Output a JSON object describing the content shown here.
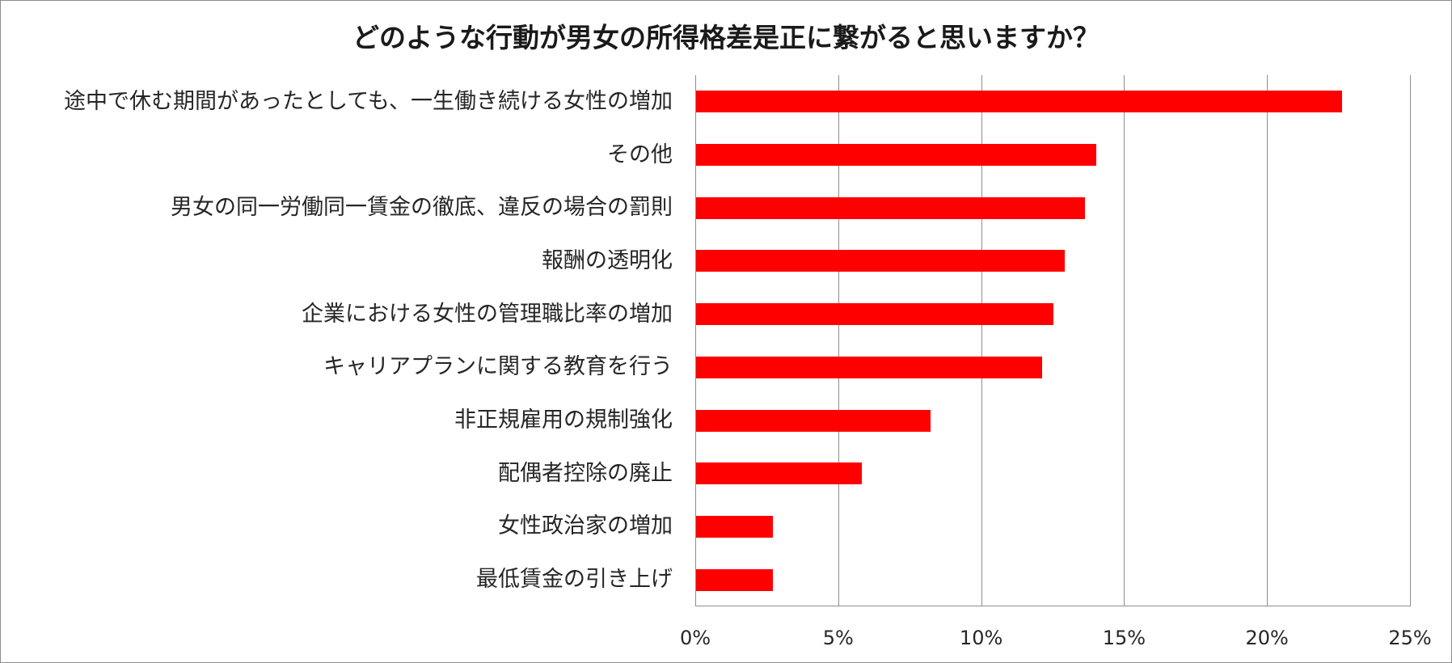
{
  "chart_data": {
    "type": "bar",
    "orientation": "horizontal",
    "title": "どのような行動が男女の所得格差是正に繋がると思いますか？",
    "xlabel": "",
    "ylabel": "",
    "categories": [
      "途中で休む期間があったとしても、一生働き続ける女性の増加",
      "その他",
      "男女の同一労働同一賃金の徹底、違反の場合の罰則",
      "報酬の透明化",
      "企業における女性の管理職比率の増加",
      "キャリアプランに関する教育を行う",
      "非正規雇用の規制強化",
      "配偶者控除の廃止",
      "女性政治家の増加",
      "最低賃金の引き上げ"
    ],
    "values": [
      22.6,
      14.0,
      13.6,
      12.9,
      12.5,
      12.1,
      8.2,
      5.8,
      2.7,
      2.7
    ],
    "unit": "%",
    "xlim": [
      0,
      25
    ],
    "x_ticks": [
      "0%",
      "5%",
      "10%",
      "15%",
      "20%",
      "25%"
    ],
    "grid": "vertical",
    "legend": "none",
    "bar_color": "#ff0000"
  },
  "title": "どのような行動が男女の所得格差是正に繋がると思いますか？",
  "labels": [
    "途中で休む期間があったとしても、一生働き続ける女性の増加",
    "その他",
    "男女の同一労働同一賃金の徹底、違反の場合の罰則",
    "報酬の透明化",
    "企業における女性の管理職比率の増加",
    "キャリアプランに関する教育を行う",
    "非正規雇用の規制強化",
    "配偶者控除の廃止",
    "女性政治家の増加",
    "最低賃金の引き上げ"
  ],
  "ticks": [
    "0%",
    "5%",
    "10%",
    "15%",
    "20%",
    "25%"
  ]
}
